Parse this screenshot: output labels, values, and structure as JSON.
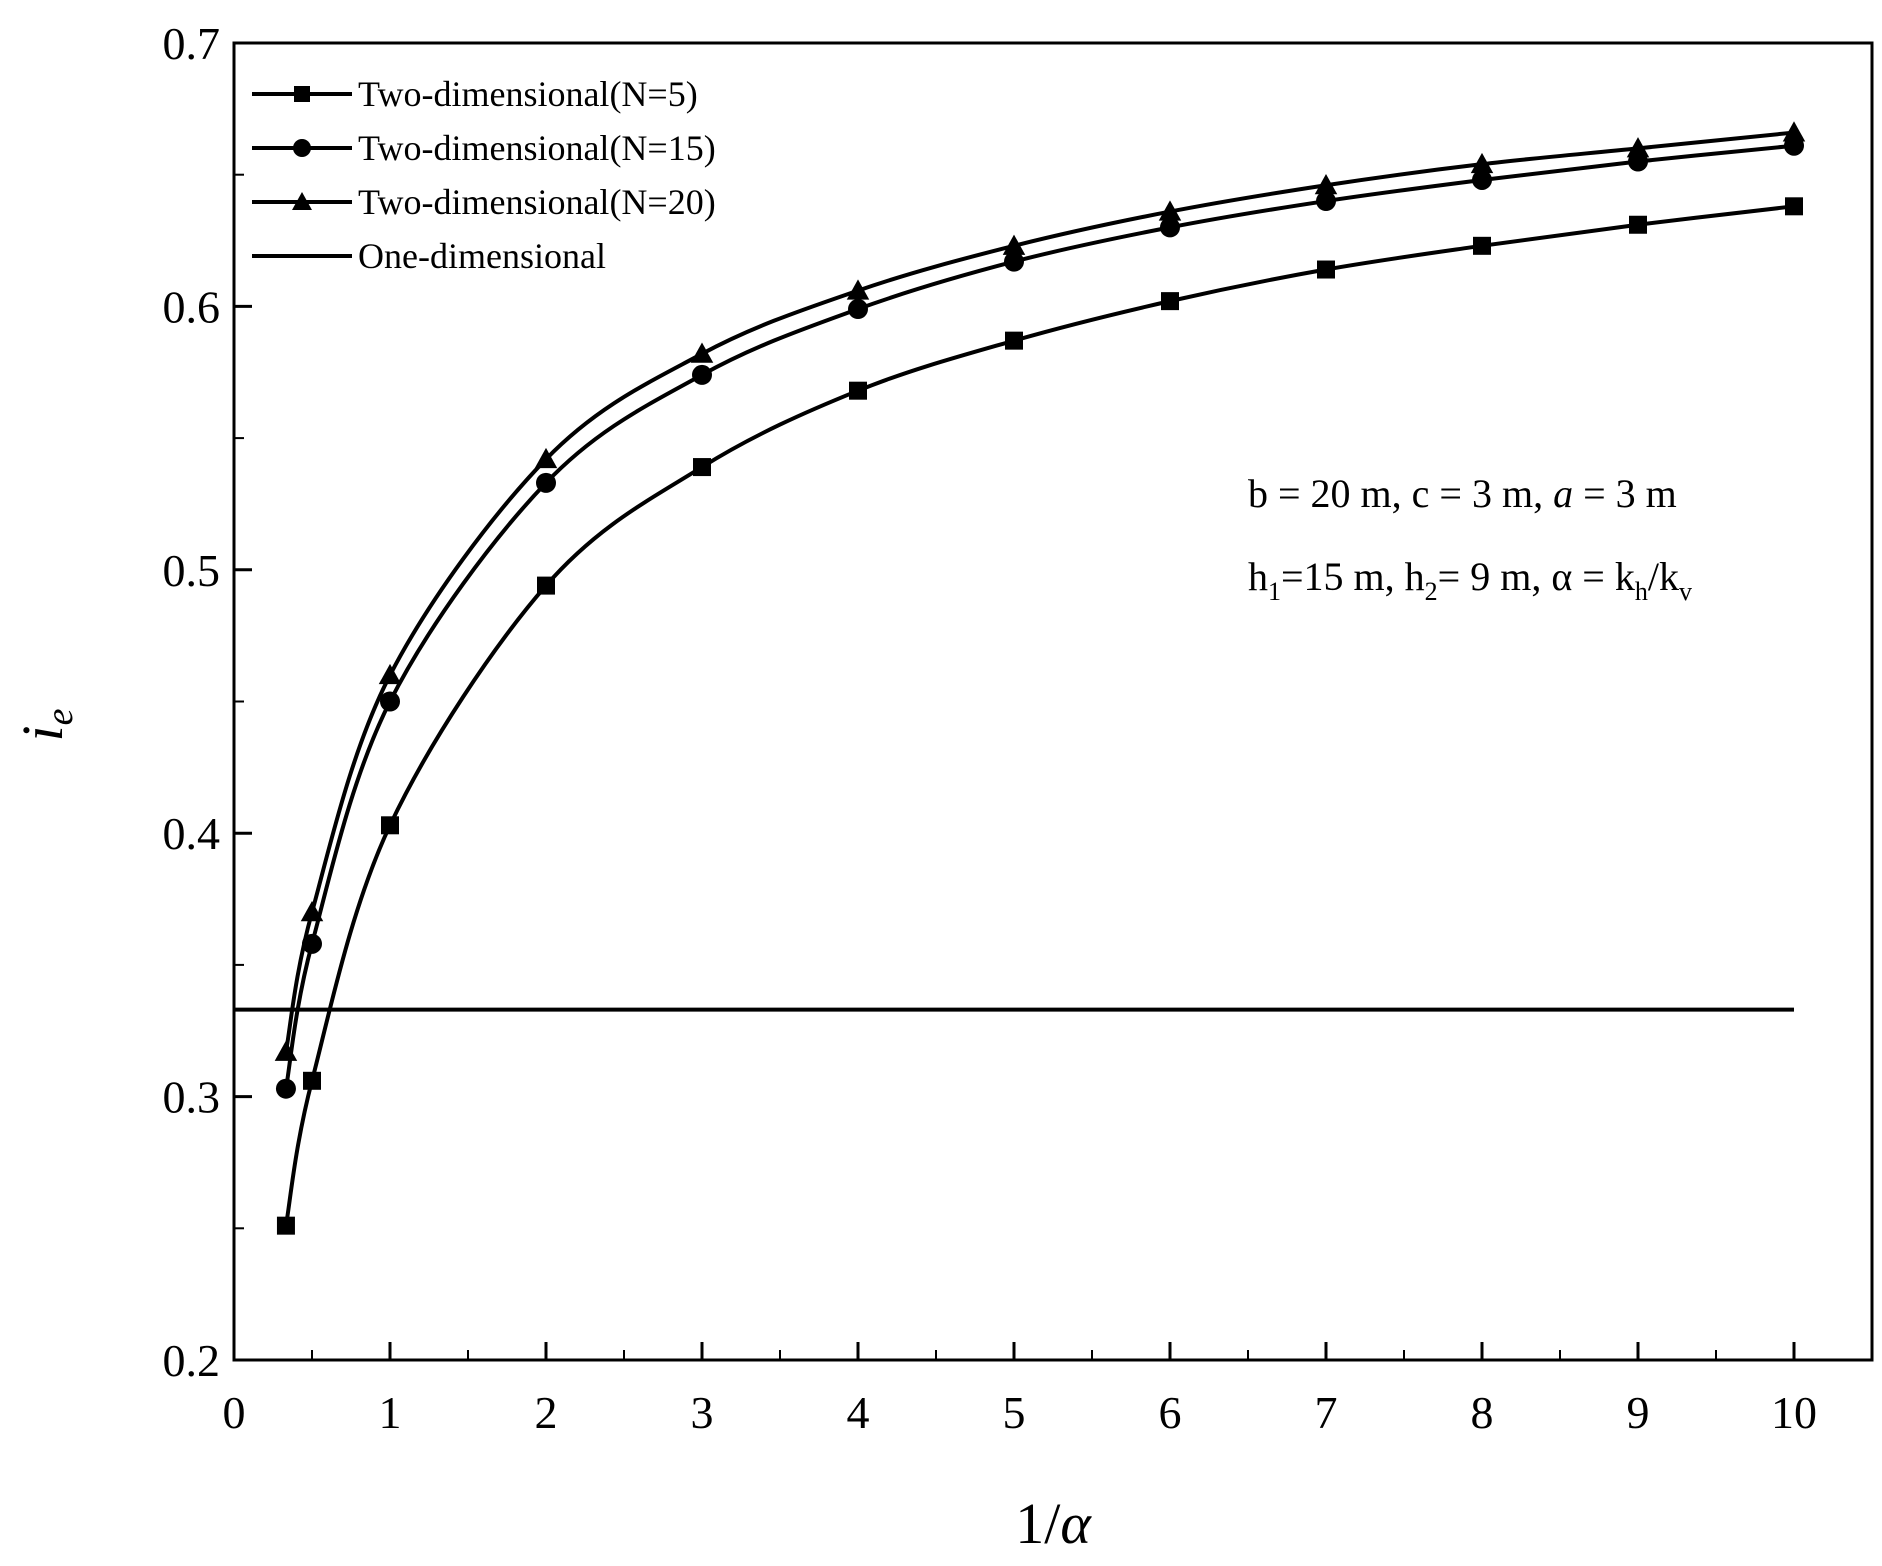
{
  "chart_data": {
    "type": "line",
    "title": "",
    "xlabel": {
      "main": "1/",
      "italic": "α"
    },
    "ylabel": {
      "main": "i",
      "sub": "e"
    },
    "xlim": [
      0,
      10.5
    ],
    "ylim": [
      0.2,
      0.7
    ],
    "xticks": [
      0,
      1,
      2,
      3,
      4,
      5,
      6,
      7,
      8,
      9,
      10
    ],
    "xtick_labels": [
      "0",
      "1",
      "2",
      "3",
      "4",
      "5",
      "6",
      "7",
      "8",
      "9",
      "10"
    ],
    "yticks": [
      0.2,
      0.3,
      0.4,
      0.5,
      0.6,
      0.7
    ],
    "ytick_labels": [
      "0.2",
      "0.3",
      "0.4",
      "0.5",
      "0.6",
      "0.7"
    ],
    "grid": false,
    "legend_position": "top-left",
    "line_color": "#000000",
    "series": [
      {
        "name": "Two-dimensional(N=5)",
        "marker": "square",
        "x": [
          0.333,
          0.5,
          1,
          2,
          3,
          4,
          5,
          6,
          7,
          8,
          9,
          10
        ],
        "y": [
          0.251,
          0.306,
          0.403,
          0.494,
          0.539,
          0.568,
          0.587,
          0.602,
          0.614,
          0.623,
          0.631,
          0.638
        ]
      },
      {
        "name": "Two-dimensional(N=15)",
        "marker": "circle",
        "x": [
          0.333,
          0.5,
          1,
          2,
          3,
          4,
          5,
          6,
          7,
          8,
          9,
          10
        ],
        "y": [
          0.303,
          0.358,
          0.45,
          0.533,
          0.574,
          0.599,
          0.617,
          0.63,
          0.64,
          0.648,
          0.655,
          0.661
        ]
      },
      {
        "name": "Two-dimensional(N=20)",
        "marker": "triangle",
        "x": [
          0.333,
          0.5,
          1,
          2,
          3,
          4,
          5,
          6,
          7,
          8,
          9,
          10
        ],
        "y": [
          0.317,
          0.37,
          0.46,
          0.542,
          0.582,
          0.606,
          0.623,
          0.636,
          0.646,
          0.654,
          0.66,
          0.666
        ]
      },
      {
        "name": "One-dimensional",
        "marker": "none",
        "x": [
          0,
          10
        ],
        "y": [
          0.333,
          0.333
        ]
      }
    ],
    "annotation": {
      "line1": {
        "prefix": "b = 20 m, c = 3 m, ",
        "italic": "a",
        "suffix": " = 3 m"
      },
      "line2": {
        "h": "h",
        "sub1": "1",
        "p1": "=15 m, ",
        "h2": "h",
        "sub2": "2",
        "p2": "= 9 m, α = k",
        "subh": "h",
        "slash": "/k",
        "subv": "v"
      }
    }
  }
}
